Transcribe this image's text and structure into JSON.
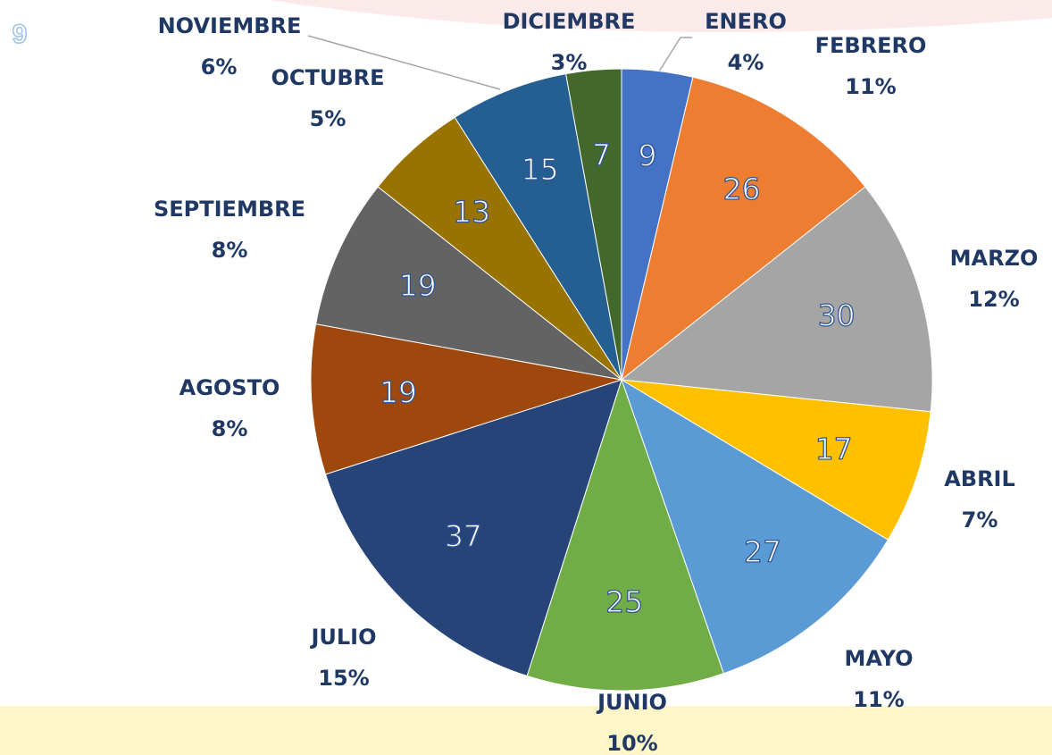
{
  "page_number": "9",
  "chart_data": {
    "type": "pie",
    "categories": [
      "ENERO",
      "FEBRERO",
      "MARZO",
      "ABRIL",
      "MAYO",
      "JUNIO",
      "JULIO",
      "AGOSTO",
      "SEPTIEMBRE",
      "OCTUBRE",
      "NOVIEMBRE",
      "DICIEMBRE"
    ],
    "values": [
      9,
      26,
      30,
      17,
      27,
      25,
      37,
      19,
      19,
      13,
      15,
      7
    ],
    "percent_labels": [
      "4%",
      "11%",
      "12%",
      "7%",
      "11%",
      "10%",
      "15%",
      "8%",
      "8%",
      "5%",
      "6%",
      "3%"
    ],
    "colors": [
      "#4472c4",
      "#ed7d31",
      "#a5a5a5",
      "#ffc000",
      "#5b9bd5",
      "#70ad47",
      "#264478",
      "#9e480e",
      "#636363",
      "#997300",
      "#255e91",
      "#43682b"
    ]
  }
}
